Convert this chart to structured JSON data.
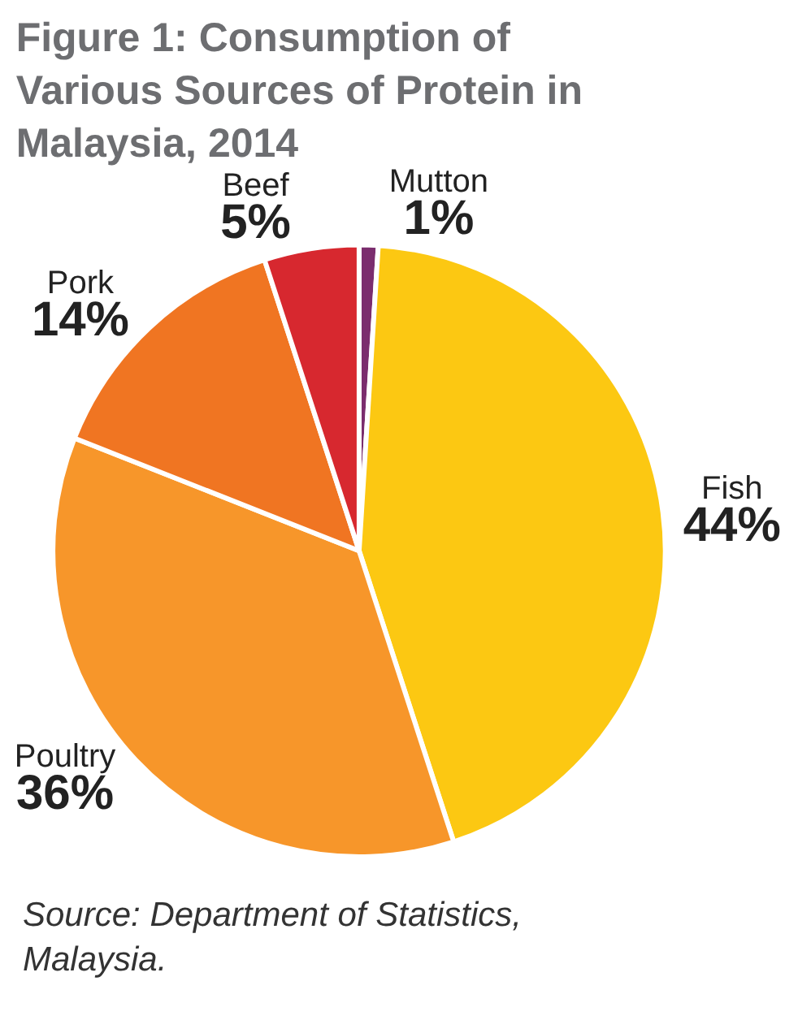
{
  "chart_data": {
    "type": "pie",
    "title": "Figure 1: Consumption of Various Sources of Protein in Malaysia, 2014",
    "categories": [
      "Mutton",
      "Fish",
      "Poultry",
      "Pork",
      "Beef"
    ],
    "values": [
      1,
      44,
      36,
      14,
      5
    ],
    "value_labels": [
      "1%",
      "44%",
      "36%",
      "14%",
      "5%"
    ],
    "colors": [
      "#7b2d6e",
      "#fcc812",
      "#f7962a",
      "#f07522",
      "#d7282f"
    ],
    "legend": false,
    "annotations": [
      "Source: Department of Statistics, Malaysia."
    ]
  }
}
